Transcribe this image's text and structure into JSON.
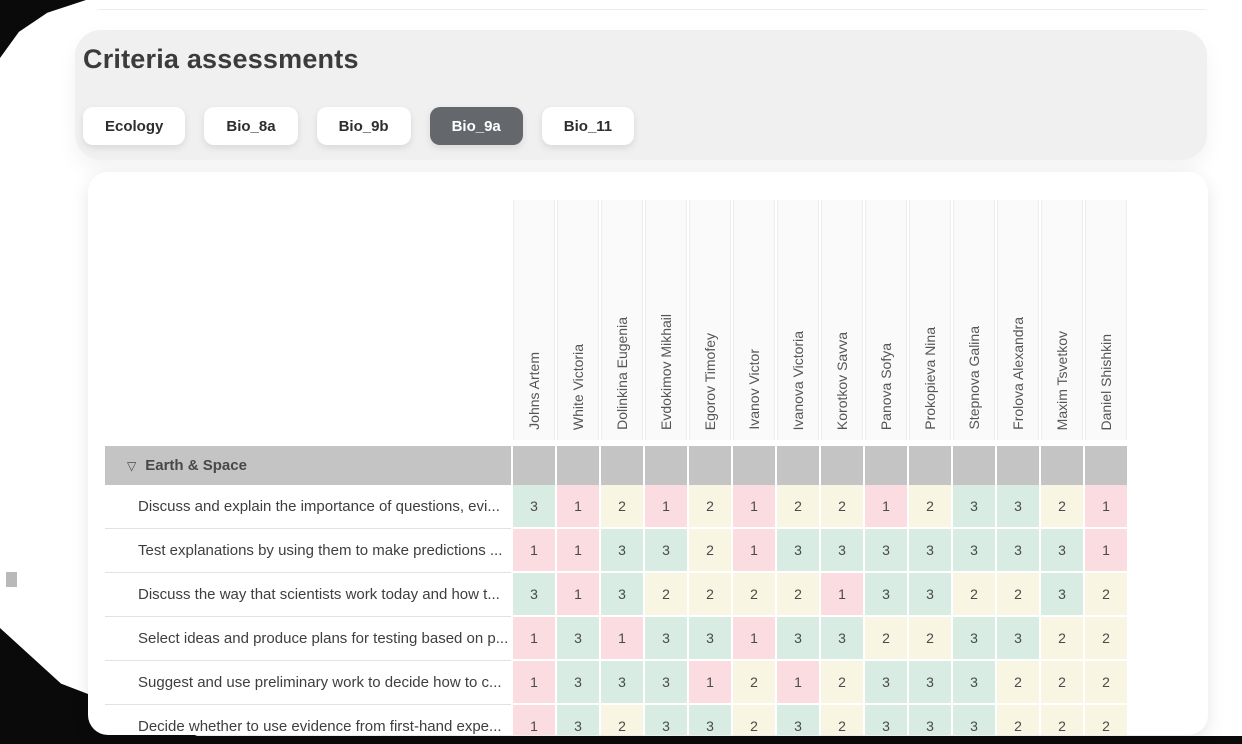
{
  "page": {
    "title": "Criteria assessments"
  },
  "tabs": {
    "items": [
      {
        "label": "Ecology",
        "active": false
      },
      {
        "label": "Bio_8a",
        "active": false
      },
      {
        "label": "Bio_9b",
        "active": false
      },
      {
        "label": "Bio_9a",
        "active": true
      },
      {
        "label": "Bio_11",
        "active": false
      }
    ]
  },
  "grid": {
    "students": [
      "Johns Artem",
      "White Victoria",
      "Dolinkina Eugenia",
      "Evdokimov Mikhail",
      "Egorov Timofey",
      "Ivanov Victor",
      "Ivanova Victoria",
      "Korotkov Savva",
      "Panova Sofya",
      "Prokopieva Nina",
      "Stepnova Galina",
      "Frolova Alexandra",
      "Maxim Tsvetkov",
      "Daniel Shishkin"
    ],
    "section": {
      "collapse_icon": "▽",
      "label": "Earth & Space"
    },
    "criteria": [
      {
        "label": "Discuss and explain the importance of questions, evi...",
        "scores": [
          3,
          1,
          2,
          1,
          2,
          1,
          2,
          2,
          1,
          2,
          3,
          3,
          2,
          1
        ]
      },
      {
        "label": "Test explanations by using them to make predictions ...",
        "scores": [
          1,
          1,
          3,
          3,
          2,
          1,
          3,
          3,
          3,
          3,
          3,
          3,
          3,
          1
        ]
      },
      {
        "label": "Discuss the way that scientists work today and how t...",
        "scores": [
          3,
          1,
          3,
          2,
          2,
          2,
          2,
          1,
          3,
          3,
          2,
          2,
          3,
          2
        ]
      },
      {
        "label": "Select ideas and produce plans for testing based on p...",
        "scores": [
          1,
          3,
          1,
          3,
          3,
          1,
          3,
          3,
          2,
          2,
          3,
          3,
          2,
          2
        ]
      },
      {
        "label": "Suggest and use preliminary work to decide how to c...",
        "scores": [
          1,
          3,
          3,
          3,
          1,
          2,
          1,
          2,
          3,
          3,
          3,
          2,
          2,
          2
        ]
      },
      {
        "label": "Decide whether to use evidence from first-hand expe...",
        "scores": [
          1,
          3,
          2,
          3,
          3,
          2,
          3,
          2,
          3,
          3,
          3,
          2,
          2,
          2
        ]
      }
    ],
    "score_colors": {
      "1": "#fbdce1",
      "2": "#f8f5e2",
      "3": "#d9ece3"
    }
  },
  "theme": {
    "active_tab_bg": "#64676c",
    "section_bg": "#c4c4c4",
    "panel_bg": "#f1f0f0"
  }
}
